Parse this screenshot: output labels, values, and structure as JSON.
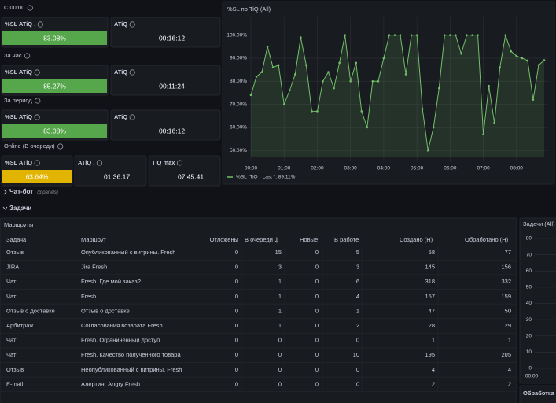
{
  "sections": [
    {
      "label": "С 00:00",
      "panels": [
        {
          "title": "%SL ATiQ .",
          "value": "83.08%",
          "color": "#56a64b"
        },
        {
          "title": "ATiQ",
          "value": "00:16:12"
        }
      ]
    },
    {
      "label": "За час",
      "panels": [
        {
          "title": "%SL ATiQ",
          "value": "85.27%",
          "color": "#56a64b"
        },
        {
          "title": "ATiQ",
          "value": "00:11:24"
        }
      ]
    },
    {
      "label": "За период",
      "panels": [
        {
          "title": "%SL ATiQ",
          "value": "83.08%",
          "color": "#56a64b"
        },
        {
          "title": "ATiQ",
          "value": "00:16:12"
        }
      ]
    },
    {
      "label": "Online (В очереди)",
      "panels": [
        {
          "title": "%SL ATiQ",
          "value": "63.64%",
          "color": "#e0b400"
        },
        {
          "title": "ATiQ .",
          "value": "01:36:17"
        },
        {
          "title": "TiQ max",
          "value": "07:45:41"
        }
      ]
    }
  ],
  "sl_chart": {
    "type": "line",
    "title": "%SL по TiQ (All)",
    "x": [
      0,
      10,
      20,
      30,
      40,
      50,
      60,
      70,
      80,
      90,
      100,
      110,
      120,
      130,
      140,
      150,
      160,
      170,
      180,
      190,
      200,
      210,
      220,
      230,
      240,
      250,
      260,
      270,
      280,
      290,
      300,
      310,
      320,
      330,
      340,
      350,
      360,
      370,
      380,
      390,
      400,
      410,
      420,
      430,
      440,
      450,
      460,
      470,
      480,
      490,
      500,
      510,
      520,
      530
    ],
    "series": [
      {
        "name": "%SL_TiQ",
        "color": "#73bf69",
        "values": [
          74,
          82,
          84,
          95,
          86,
          87,
          70,
          76,
          83,
          99,
          87,
          67,
          67,
          80,
          84,
          77,
          88,
          100,
          80,
          88,
          67,
          60,
          80,
          80,
          90,
          100,
          100,
          100,
          83,
          100,
          100,
          68,
          50,
          60,
          77,
          100,
          100,
          100,
          92,
          100,
          100,
          100,
          57,
          78,
          62,
          86,
          100,
          93,
          91,
          90,
          89,
          72,
          87,
          89.11
        ]
      }
    ],
    "legend_extra": "Last *: 89.11%",
    "xlim": [
      0,
      530
    ],
    "ylim": [
      47,
      105
    ],
    "xticks": [
      {
        "value": 0,
        "label": "00:00"
      },
      {
        "value": 60,
        "label": "01:00"
      },
      {
        "value": 120,
        "label": "02:00"
      },
      {
        "value": 180,
        "label": "03:00"
      },
      {
        "value": 240,
        "label": "04:00"
      },
      {
        "value": 300,
        "label": "05:00"
      },
      {
        "value": 360,
        "label": "06:00"
      },
      {
        "value": 420,
        "label": "07:00"
      },
      {
        "value": 480,
        "label": "08:00"
      }
    ],
    "yticks": [
      {
        "value": 50,
        "label": "50.00%"
      },
      {
        "value": 60,
        "label": "60.00%"
      },
      {
        "value": 70,
        "label": "70.00%"
      },
      {
        "value": 80,
        "label": "80.00%"
      },
      {
        "value": 90,
        "label": "90.00%"
      },
      {
        "value": 100,
        "label": "100.00%"
      }
    ],
    "grid": true
  },
  "chatbot_row": {
    "title": "Чат-бот",
    "note": "(3 panels)"
  },
  "tasks_row": {
    "title": "Задачи"
  },
  "table": {
    "title": "Маршруты",
    "columns": [
      "Задача",
      "Маршрут",
      "Отложены",
      "В очереди",
      "Новые",
      "В работе",
      "Создано (Н)",
      "Обработано (Н)"
    ],
    "rows": [
      [
        "Отзыв",
        "Опубликованный с витрины. Fresh",
        0,
        15,
        0,
        5,
        58,
        77
      ],
      [
        "JIRA",
        "Jira Fresh",
        0,
        3,
        0,
        3,
        145,
        156
      ],
      [
        "Чат",
        "Fresh. Где мой заказ?",
        0,
        1,
        0,
        6,
        318,
        332
      ],
      [
        "Чат",
        "Fresh",
        0,
        1,
        0,
        4,
        157,
        159
      ],
      [
        "Отзыв о доставке",
        "Отзыв о доставке",
        0,
        1,
        0,
        1,
        47,
        50
      ],
      [
        "Арбитраж",
        "Согласования возврата Fresh",
        0,
        1,
        0,
        2,
        28,
        29
      ],
      [
        "Чат",
        "Fresh. Ограниченный доступ",
        0,
        0,
        0,
        0,
        1,
        1
      ],
      [
        "Чат",
        "Fresh. Качество полученного товара",
        0,
        0,
        0,
        10,
        195,
        205
      ],
      [
        "Отзыв",
        "Неопубликованный с витрины. Fresh",
        0,
        0,
        0,
        0,
        4,
        4
      ],
      [
        "E-mail",
        "Алертинг Angry Fresh",
        0,
        0,
        0,
        0,
        2,
        2
      ]
    ]
  },
  "tasks_chart": {
    "title": "Задачи (All)",
    "ylim": [
      0,
      80
    ],
    "yticks": [
      0,
      10,
      20,
      30,
      40,
      50,
      60,
      70,
      80
    ],
    "xticks": [
      {
        "value": 0,
        "label": "00:00"
      }
    ]
  },
  "processing_panel": {
    "title": "Обработка"
  }
}
